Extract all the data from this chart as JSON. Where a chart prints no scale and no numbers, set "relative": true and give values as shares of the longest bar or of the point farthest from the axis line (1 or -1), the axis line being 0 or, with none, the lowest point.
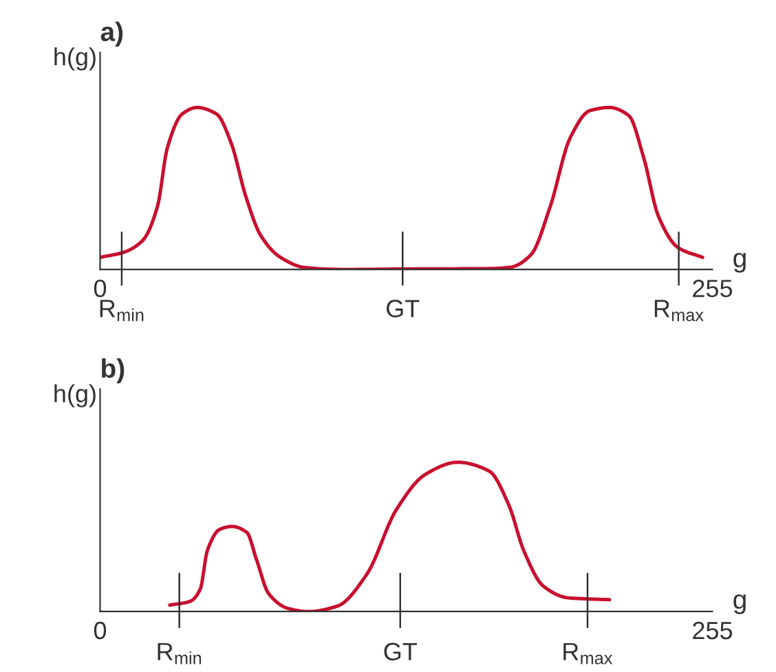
{
  "chart_data": [
    {
      "type": "line",
      "title": "a)",
      "ylabel": "h(g)",
      "xlabel": "g",
      "relative": true,
      "xlim": [
        0,
        255
      ],
      "xticks": [
        0,
        255
      ],
      "ref_lines": [
        {
          "axis": "x",
          "value": 9,
          "label": "R$_{min}$",
          "color": "#333333"
        },
        {
          "axis": "x",
          "value": 126,
          "label": "GT",
          "color": "#333333"
        },
        {
          "axis": "x",
          "value": 241,
          "label": "R$_{max}$",
          "color": "#333333"
        }
      ],
      "grid": false,
      "marker": "none",
      "line_style": "solid",
      "series": [
        {
          "color": "#c8102e",
          "x": [
            0,
            9.6,
            17.8,
            23.9,
            28.0,
            34.2,
            40.3,
            48.5,
            54.6,
            60.7,
            66.9,
            75.1,
            85.3,
            101.6,
            126.2,
            163.0,
            171.2,
            179.4,
            187.5,
            195.7,
            203.9,
            212.1,
            220.2,
            226.4,
            232.5,
            240.7,
            250.9
          ],
          "values": [
            0.075,
            0.105,
            0.18,
            0.39,
            0.75,
            0.96,
            1.0,
            0.96,
            0.78,
            0.45,
            0.21,
            0.075,
            0.012,
            0,
            0.003,
            0.006,
            0.015,
            0.09,
            0.39,
            0.81,
            0.98,
            1.0,
            0.95,
            0.69,
            0.33,
            0.135,
            0.075
          ]
        }
      ]
    },
    {
      "type": "line",
      "title": "b)",
      "ylabel": "h(g)",
      "xlabel": "g",
      "relative": true,
      "xlim": [
        0,
        255
      ],
      "xticks": [
        0,
        255
      ],
      "ref_lines": [
        {
          "axis": "x",
          "value": 33,
          "label": "R$_{min}$",
          "color": "#333333"
        },
        {
          "axis": "x",
          "value": 125,
          "label": "GT",
          "color": "#333333"
        },
        {
          "axis": "x",
          "value": 203,
          "label": "R$_{max}$",
          "color": "#333333"
        }
      ],
      "grid": false,
      "marker": "none",
      "line_style": "solid",
      "series": [
        {
          "color": "#c8102e",
          "x": [
            29.0,
            37.6,
            41.7,
            44.7,
            49.8,
            54.9,
            61.1,
            65.1,
            70.2,
            78.4,
            86.6,
            98.8,
            111.1,
            123.3,
            135.6,
            148.9,
            162.1,
            170.3,
            176.4,
            184.6,
            194.8,
            212.2
          ],
          "values": [
            0.043,
            0.069,
            0.15,
            0.41,
            0.55,
            0.57,
            0.53,
            0.35,
            0.12,
            0.02,
            0,
            0.036,
            0.25,
            0.68,
            0.92,
            1.0,
            0.94,
            0.71,
            0.41,
            0.17,
            0.092,
            0.079
          ]
        }
      ]
    }
  ]
}
